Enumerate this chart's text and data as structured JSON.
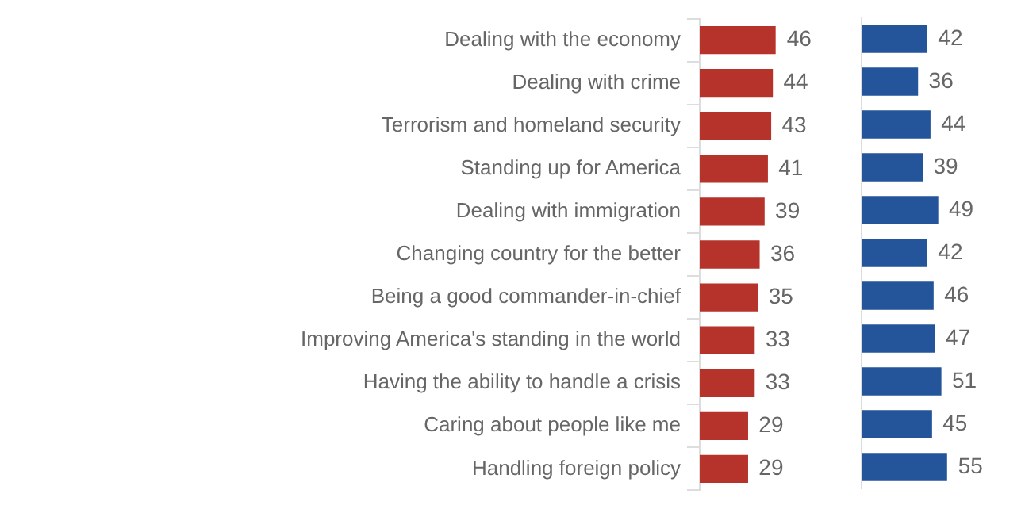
{
  "chart_data": [
    {
      "type": "bar",
      "orientation": "horizontal",
      "categories": [
        "Dealing with the economy",
        "Dealing with crime",
        "Terrorism and homeland security",
        "Standing up for America",
        "Dealing with immigration",
        "Changing country for the better",
        "Being a good commander-in-chief",
        "Improving America's standing in the world",
        "Having the ability to handle a crisis",
        "Caring about people like me",
        "Handling foreign policy"
      ],
      "values": [
        46,
        44,
        43,
        41,
        39,
        36,
        35,
        33,
        33,
        29,
        29
      ],
      "color": "#b5332a",
      "data_labels": true
    },
    {
      "type": "bar",
      "orientation": "horizontal",
      "categories": [
        null,
        null,
        null,
        null,
        null,
        null,
        null,
        null,
        null,
        null,
        null
      ],
      "values": [
        42,
        36,
        44,
        39,
        49,
        42,
        46,
        47,
        51,
        45,
        55
      ],
      "color": "#24559a",
      "data_labels": true,
      "tick_labels": false
    }
  ]
}
